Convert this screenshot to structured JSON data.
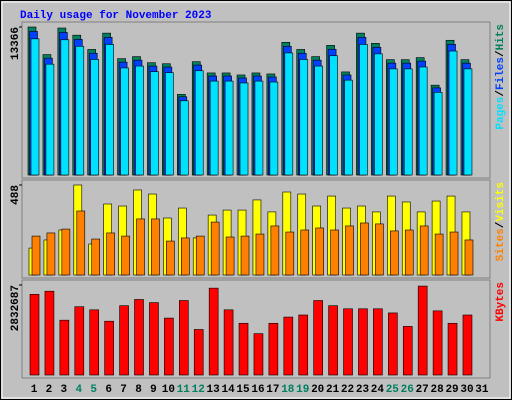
{
  "legend_separator": "/",
  "chart_data": [
    {
      "type": "bar",
      "title": "Daily usage for November 2023",
      "ylim": [
        0,
        13366
      ],
      "yticks": [
        13366
      ],
      "series": [
        {
          "name": "Hits",
          "color": "#00805c",
          "values": [
            13366,
            10877,
            13274,
            12629,
            11338,
            12813,
            10508,
            10693,
            10140,
            10048,
            7282,
            10232,
            9218,
            9218,
            9034,
            9218,
            9126,
            11983,
            11338,
            10693,
            11707,
            9310,
            12813,
            11891,
            10416,
            10416,
            10601,
            8112,
            12168,
            10416,
            null
          ]
        },
        {
          "name": "Files",
          "color": "#0040ff",
          "values": [
            12965,
            10551,
            12876,
            12250,
            10998,
            12429,
            10193,
            10372,
            9836,
            9747,
            7064,
            9925,
            8941,
            8941,
            8763,
            8941,
            8852,
            11624,
            10998,
            10372,
            11356,
            9031,
            12429,
            11534,
            10104,
            10104,
            10283,
            7869,
            11803,
            10104,
            null
          ]
        },
        {
          "name": "Pages",
          "color": "#00e0ff",
          "values": [
            12297,
            10007,
            12212,
            11619,
            10431,
            11788,
            9667,
            9838,
            9329,
            9244,
            6699,
            9413,
            8481,
            8481,
            8311,
            8481,
            8396,
            11024,
            10431,
            9838,
            10770,
            8565,
            11788,
            10940,
            9583,
            9583,
            9753,
            7463,
            11195,
            9583,
            null
          ]
        }
      ]
    },
    {
      "type": "bar",
      "ylim": [
        0,
        488
      ],
      "yticks": [
        488
      ],
      "series": [
        {
          "name": "Visits",
          "color": "#ffff00",
          "values": [
            146,
            190,
            244,
            488,
            168,
            385,
            374,
            461,
            439,
            309,
            363,
            201,
            325,
            352,
            352,
            407,
            342,
            450,
            439,
            374,
            428,
            363,
            374,
            342,
            428,
            396,
            342,
            401,
            428,
            342,
            null
          ]
        },
        {
          "name": "Sites",
          "color": "#ff8000",
          "values": [
            211,
            228,
            249,
            347,
            195,
            228,
            211,
            304,
            304,
            184,
            201,
            211,
            287,
            206,
            211,
            222,
            266,
            233,
            244,
            255,
            244,
            266,
            282,
            277,
            239,
            244,
            266,
            222,
            233,
            190,
            null
          ]
        }
      ]
    },
    {
      "type": "bar",
      "ylim": [
        0,
        2832687
      ],
      "yticks": [
        2832687
      ],
      "categories": [
        "1",
        "2",
        "3",
        "4",
        "5",
        "6",
        "7",
        "8",
        "9",
        "10",
        "11",
        "12",
        "13",
        "14",
        "15",
        "16",
        "17",
        "18",
        "19",
        "20",
        "21",
        "22",
        "23",
        "24",
        "25",
        "26",
        "27",
        "28",
        "29",
        "30",
        "31"
      ],
      "highlight_indices": [
        3,
        4,
        10,
        11,
        17,
        18,
        24,
        25
      ],
      "highlight_color": "#008060",
      "series": [
        {
          "name": "KBytes",
          "color": "#ff0000",
          "values": [
            2539580,
            2637260,
            1725620,
            2148900,
            2051220,
            1693060,
            2181460,
            2376810,
            2279140,
            1790740,
            2344250,
            1432390,
            2734010,
            2051220,
            1627980,
            1302390,
            1627980,
            1823300,
            1888460,
            2344250,
            2181460,
            2083780,
            2083780,
            2083780,
            1953580,
            1530300,
            2799130,
            2018660,
            1627980,
            1888460,
            null
          ]
        }
      ]
    }
  ]
}
